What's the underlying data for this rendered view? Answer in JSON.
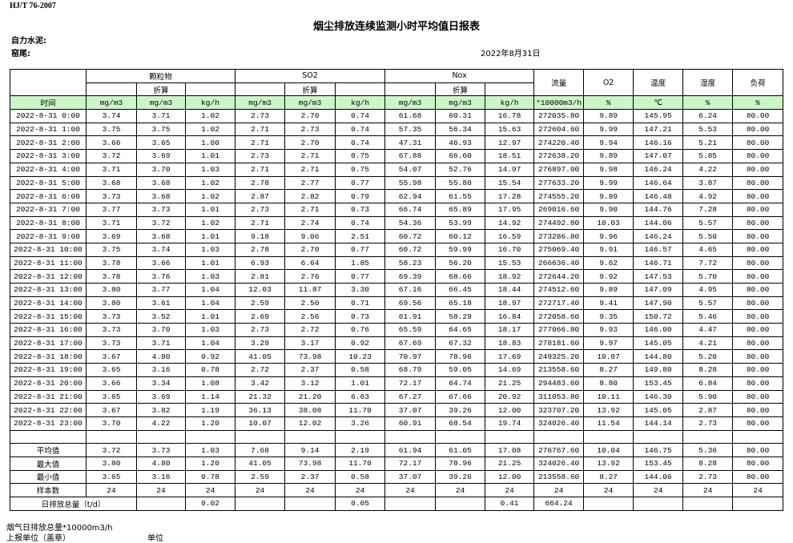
{
  "header": {
    "standard": "HJ/T  76-2007",
    "title": "烟尘排放连续监测小时平均值日报表",
    "company": "自力水泥:",
    "unit": "窑尾:",
    "date": "2022年8月31日"
  },
  "table": {
    "time_label": "时间",
    "groups": [
      "颗粒物",
      "SO2",
      "Nox"
    ],
    "sub_label": "折算",
    "singles": [
      "流量",
      "O2",
      "温度",
      "湿度",
      "负荷"
    ],
    "units": [
      "mg/m3",
      "mg/m3",
      "kg/h",
      "mg/m3",
      "mg/m3",
      "kg/h",
      "mg/m3",
      "mg/m3",
      "kg/h",
      "*10000m3/h",
      "%",
      "℃",
      "%",
      "%"
    ],
    "rows": [
      [
        "2022-8-31 0:00",
        "3.74",
        "3.71",
        "1.02",
        "2.73",
        "2.70",
        "0.74",
        "61.68",
        "60.31",
        "16.78",
        "272035.80",
        "9.89",
        "145.95",
        "6.24",
        "80.00"
      ],
      [
        "2022-8-31 1:00",
        "3.75",
        "3.75",
        "1.02",
        "2.71",
        "2.73",
        "0.74",
        "57.35",
        "56.34",
        "15.63",
        "272604.60",
        "9.99",
        "147.21",
        "5.53",
        "80.00"
      ],
      [
        "2022-8-31 2:00",
        "3.66",
        "3.65",
        "1.00",
        "2.71",
        "2.70",
        "0.74",
        "47.31",
        "46.93",
        "12.97",
        "274220.40",
        "9.94",
        "146.16",
        "5.21",
        "80.00"
      ],
      [
        "2022-8-31 3:00",
        "3.72",
        "3.69",
        "1.01",
        "2.73",
        "2.71",
        "0.75",
        "67.88",
        "66.60",
        "18.51",
        "272638.20",
        "9.89",
        "147.07",
        "5.85",
        "80.00"
      ],
      [
        "2022-8-31 4:00",
        "3.71",
        "3.70",
        "1.03",
        "2.71",
        "2.71",
        "0.75",
        "54.07",
        "52.76",
        "14.97",
        "276897.00",
        "9.98",
        "146.24",
        "4.22",
        "80.00"
      ],
      [
        "2022-8-31 5:00",
        "3.68",
        "3.68",
        "1.02",
        "2.78",
        "2.77",
        "0.77",
        "55.98",
        "55.80",
        "15.54",
        "277633.20",
        "9.99",
        "146.64",
        "3.87",
        "80.00"
      ],
      [
        "2022-8-31 6:00",
        "3.73",
        "3.68",
        "1.02",
        "2.87",
        "2.82",
        "0.79",
        "62.94",
        "61.55",
        "17.28",
        "274555.20",
        "9.89",
        "146.48",
        "4.92",
        "80.00"
      ],
      [
        "2022-8-31 7:00",
        "3.77",
        "3.73",
        "1.01",
        "2.73",
        "2.71",
        "0.73",
        "66.74",
        "65.89",
        "17.95",
        "269016.60",
        "9.90",
        "144.76",
        "7.28",
        "80.00"
      ],
      [
        "2022-8-31 8:00",
        "3.71",
        "3.72",
        "1.02",
        "2.71",
        "2.74",
        "0.74",
        "54.36",
        "53.99",
        "14.92",
        "274492.80",
        "10.03",
        "144.06",
        "5.57",
        "80.00"
      ],
      [
        "2022-8-31 9:00",
        "3.69",
        "3.68",
        "1.01",
        "9.18",
        "9.06",
        "2.51",
        "60.72",
        "60.12",
        "16.59",
        "273286.80",
        "9.96",
        "146.24",
        "5.50",
        "80.00"
      ],
      [
        "2022-8-31 10:00",
        "3.75",
        "3.74",
        "1.03",
        "2.78",
        "2.70",
        "0.77",
        "60.72",
        "59.99",
        "16.70",
        "275069.40",
        "9.91",
        "146.57",
        "4.65",
        "80.00"
      ],
      [
        "2022-8-31 11:00",
        "3.78",
        "3.66",
        "1.01",
        "6.93",
        "6.64",
        "1.85",
        "58.23",
        "56.20",
        "15.53",
        "266636.40",
        "9.62",
        "146.71",
        "7.72",
        "80.00"
      ],
      [
        "2022-8-31 12:00",
        "3.78",
        "3.76",
        "1.03",
        "2.81",
        "2.76",
        "0.77",
        "69.39",
        "68.66",
        "18.92",
        "272644.20",
        "9.92",
        "147.53",
        "5.70",
        "80.00"
      ],
      [
        "2022-8-31 13:00",
        "3.80",
        "3.77",
        "1.04",
        "12.03",
        "11.87",
        "3.30",
        "67.16",
        "66.45",
        "18.44",
        "274512.60",
        "9.89",
        "147.09",
        "4.95",
        "80.00"
      ],
      [
        "2022-8-31 14:00",
        "3.80",
        "3.61",
        "1.04",
        "2.59",
        "2.50",
        "0.71",
        "69.56",
        "65.18",
        "18.97",
        "272717.40",
        "9.41",
        "147.90",
        "5.57",
        "80.00"
      ],
      [
        "2022-8-31 15:00",
        "3.73",
        "3.52",
        "1.01",
        "2.69",
        "2.56",
        "0.73",
        "61.91",
        "58.29",
        "16.84",
        "272058.60",
        "9.35",
        "150.72",
        "5.46",
        "80.00"
      ],
      [
        "2022-8-31 16:00",
        "3.73",
        "3.70",
        "1.03",
        "2.73",
        "2.72",
        "0.76",
        "65.59",
        "64.65",
        "18.17",
        "277066.80",
        "9.93",
        "146.00",
        "4.47",
        "80.00"
      ],
      [
        "2022-8-31 17:00",
        "3.73",
        "3.71",
        "1.04",
        "3.29",
        "3.17",
        "0.92",
        "67.69",
        "67.32",
        "18.83",
        "278181.60",
        "9.97",
        "145.05",
        "4.21",
        "80.00"
      ],
      [
        "2022-8-31 18:00",
        "3.67",
        "4.80",
        "0.92",
        "41.05",
        "73.98",
        "10.23",
        "70.97",
        "78.96",
        "17.69",
        "249325.20",
        "10.87",
        "144.80",
        "5.20",
        "80.00"
      ],
      [
        "2022-8-31 19:00",
        "3.65",
        "3.16",
        "0.78",
        "2.72",
        "2.37",
        "0.58",
        "68.79",
        "59.05",
        "14.69",
        "213558.60",
        "8.27",
        "149.80",
        "8.28",
        "80.00"
      ],
      [
        "2022-8-31 20:00",
        "3.66",
        "3.34",
        "1.08",
        "3.42",
        "3.12",
        "1.01",
        "72.17",
        "64.74",
        "21.25",
        "294483.60",
        "8.80",
        "153.45",
        "6.84",
        "80.00"
      ],
      [
        "2022-8-31 21:00",
        "3.65",
        "3.69",
        "1.14",
        "21.32",
        "21.20",
        "6.63",
        "67.27",
        "67.66",
        "20.92",
        "311053.80",
        "10.11",
        "146.30",
        "5.90",
        "80.00"
      ],
      [
        "2022-8-31 22:00",
        "3.67",
        "3.82",
        "1.19",
        "36.13",
        "38.08",
        "11.70",
        "37.07",
        "39.26",
        "12.00",
        "323707.20",
        "13.92",
        "145.05",
        "2.87",
        "80.00"
      ],
      [
        "2022-8-31 23:00",
        "3.70",
        "4.22",
        "1.20",
        "10.07",
        "12.02",
        "3.26",
        "60.91",
        "68.54",
        "19.74",
        "324026.40",
        "11.54",
        "144.14",
        "2.73",
        "80.00"
      ]
    ],
    "summary": [
      [
        "平均值",
        "3.72",
        "3.73",
        "1.03",
        "7.68",
        "9.14",
        "2.19",
        "61.94",
        "61.05",
        "17.08",
        "276767.60",
        "10.04",
        "146.75",
        "5.36",
        "80.00"
      ],
      [
        "最大值",
        "3.80",
        "4.80",
        "1.20",
        "41.05",
        "73.98",
        "11.70",
        "72.17",
        "78.96",
        "21.25",
        "324026.40",
        "13.92",
        "153.45",
        "8.28",
        "80.00"
      ],
      [
        "最小值",
        "3.65",
        "3.16",
        "0.78",
        "2.59",
        "2.37",
        "0.58",
        "37.07",
        "39.26",
        "12.00",
        "213558.60",
        "8.27",
        "144.06",
        "2.73",
        "80.00"
      ],
      [
        "样本数",
        "24",
        "24",
        "24",
        "24",
        "24",
        "24",
        "24",
        "24",
        "24",
        "24",
        "24",
        "24",
        "24",
        "24"
      ]
    ],
    "total": {
      "label": "日排放总量（t/d）",
      "dust": "0.02",
      "so2": "0.05",
      "nox": "0.41",
      "flow": "664.24"
    }
  },
  "footer": {
    "flow_total": "烟气日排放总量*10000m3/h",
    "reporter": "上报单位（盖章）",
    "unit": "单位"
  }
}
